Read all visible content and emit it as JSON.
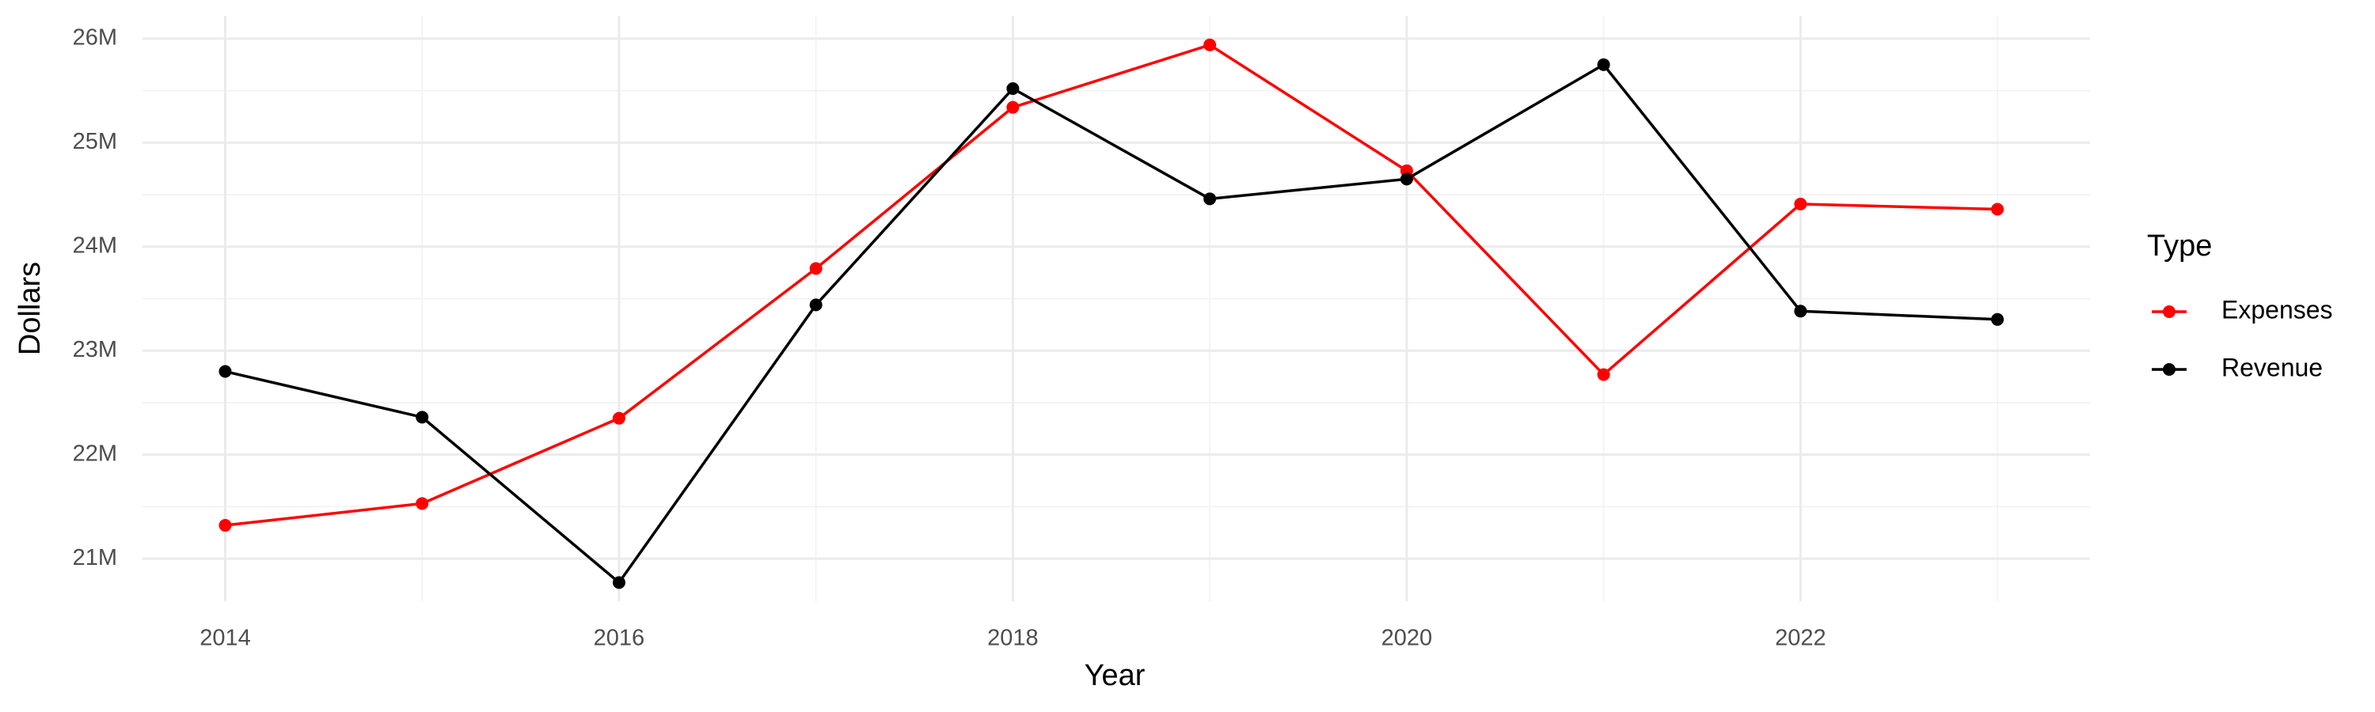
{
  "chart_data": {
    "type": "line",
    "x_label": "Year",
    "y_label": "Dollars",
    "legend_title": "Type",
    "legend_position": "right",
    "grid": true,
    "x": [
      2014,
      2015,
      2016,
      2017,
      2018,
      2019,
      2020,
      2021,
      2022,
      2023
    ],
    "series": [
      {
        "name": "Expenses",
        "color": "#ff0000",
        "values": [
          21320000,
          21530000,
          22350000,
          23790000,
          25340000,
          25940000,
          24730000,
          22770000,
          24410000,
          24360000
        ]
      },
      {
        "name": "Revenue",
        "color": "#000000",
        "values": [
          22800000,
          22360000,
          20770000,
          23440000,
          25520000,
          24460000,
          24650000,
          25750000,
          23380000,
          23300000
        ]
      }
    ],
    "xlim": [
      2013.58,
      2023.47
    ],
    "xticks": [
      2014,
      2016,
      2018,
      2020,
      2022
    ],
    "ylim": [
      20590000,
      26220000
    ],
    "yticks": [
      {
        "value": 21000000,
        "label": "21M"
      },
      {
        "value": 22000000,
        "label": "22M"
      },
      {
        "value": 23000000,
        "label": "23M"
      },
      {
        "value": 24000000,
        "label": "24M"
      },
      {
        "value": 25000000,
        "label": "25M"
      },
      {
        "value": 26000000,
        "label": "26M"
      }
    ]
  }
}
